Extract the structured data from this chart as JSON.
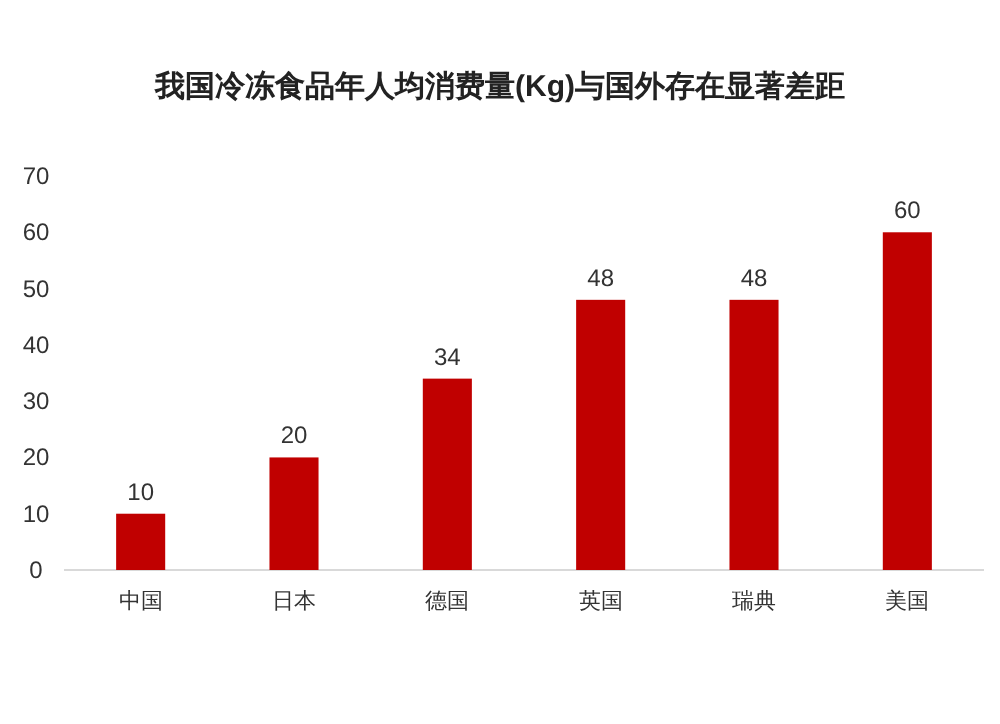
{
  "chart_data": {
    "type": "bar",
    "title": "我国冷冻食品年人均消费量(Kg)与国外存在显著差距",
    "categories": [
      "中国",
      "日本",
      "德国",
      "英国",
      "瑞典",
      "美国"
    ],
    "values": [
      10,
      20,
      34,
      48,
      48,
      60
    ],
    "color": "#c00000",
    "ylim": [
      0,
      70
    ],
    "yticks": [
      0,
      10,
      20,
      30,
      40,
      50,
      60,
      70
    ],
    "data_labels": true
  }
}
